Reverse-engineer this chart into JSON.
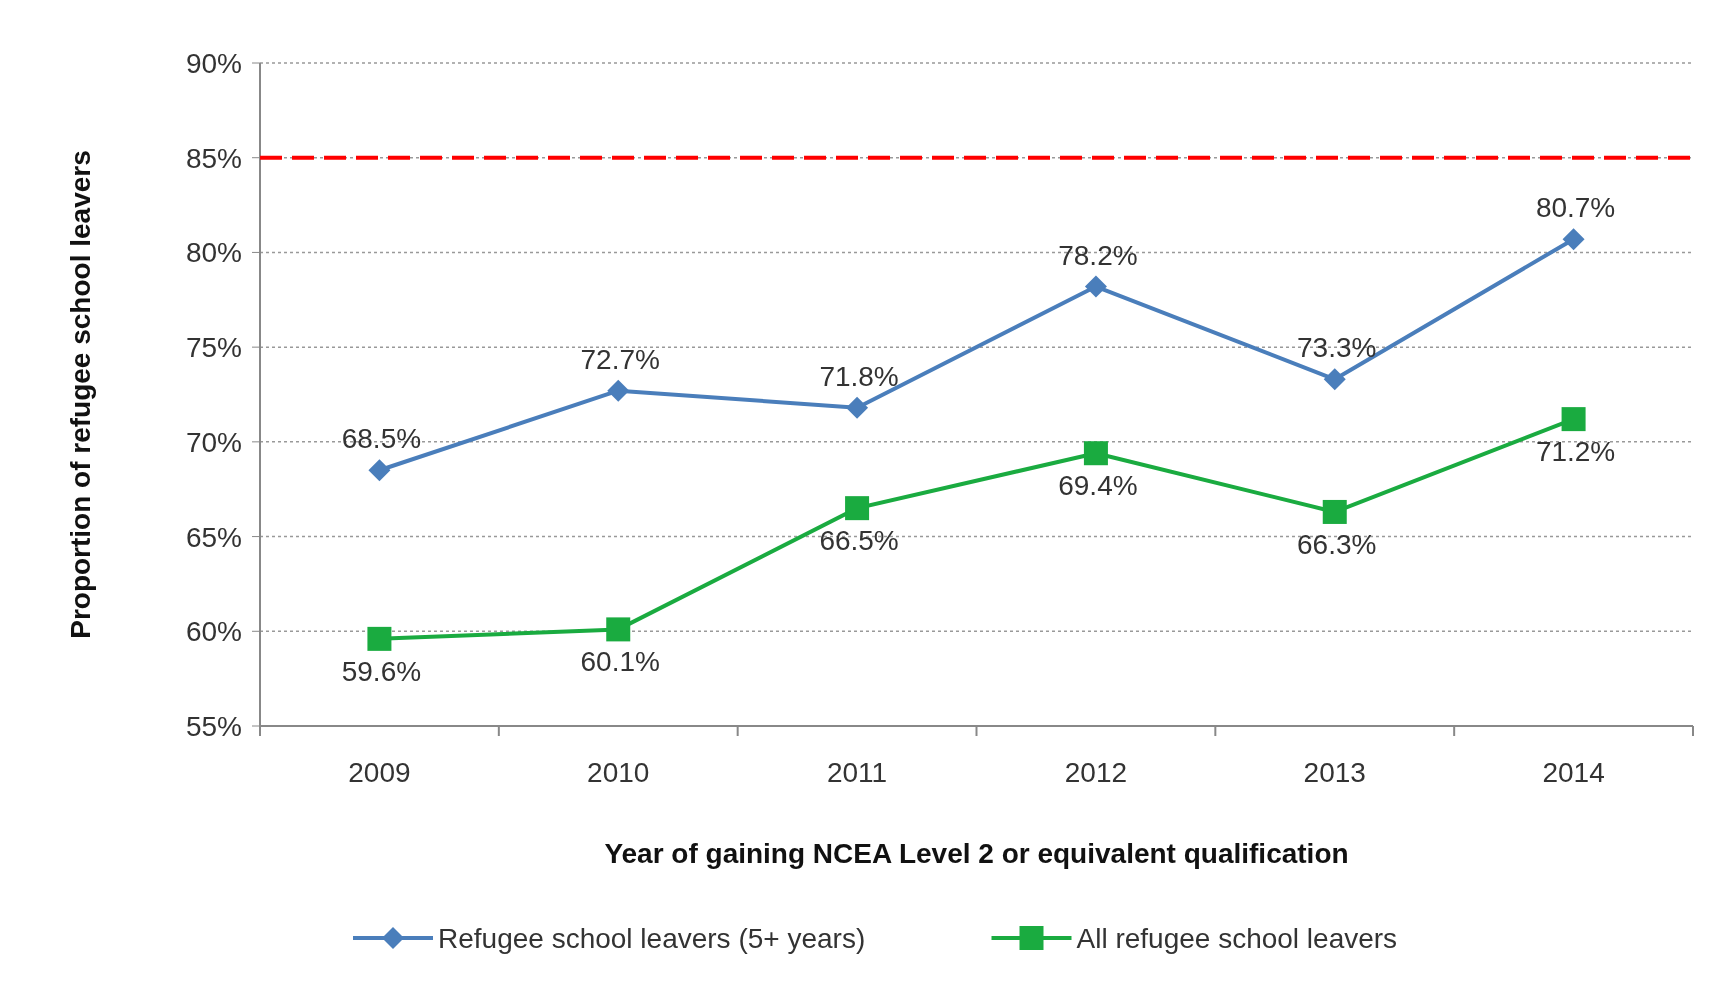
{
  "chart_data": {
    "type": "line",
    "xlabel": "Year of gaining NCEA Level 2 or equivalent qualification",
    "ylabel": "Proportion  of refugee school leavers",
    "categories": [
      "2009",
      "2010",
      "2011",
      "2012",
      "2013",
      "2014"
    ],
    "series": [
      {
        "name": "Refugee school leavers (5+ years)",
        "color": "#4a7ebb",
        "marker": "diamond",
        "values": [
          68.5,
          72.7,
          71.8,
          78.2,
          73.3,
          80.7
        ],
        "value_labels": [
          "68.5%",
          "72.7%",
          "71.8%",
          "78.2%",
          "73.3%",
          "80.7%"
        ]
      },
      {
        "name": "All refugee school leavers",
        "color": "#1aab40",
        "marker": "square",
        "values": [
          59.6,
          60.1,
          66.5,
          69.4,
          66.3,
          71.2
        ],
        "value_labels": [
          "59.6%",
          "60.1%",
          "66.5%",
          "69.4%",
          "66.3%",
          "71.2%"
        ]
      }
    ],
    "ylim": [
      55,
      90
    ],
    "yticks": [
      {
        "value": 55,
        "label": "55%"
      },
      {
        "value": 60,
        "label": "60%"
      },
      {
        "value": 65,
        "label": "65%"
      },
      {
        "value": 70,
        "label": "70%"
      },
      {
        "value": 75,
        "label": "75%"
      },
      {
        "value": 80,
        "label": "80%"
      },
      {
        "value": 85,
        "label": "85%"
      },
      {
        "value": 90,
        "label": "90%"
      }
    ],
    "ref_lines": [
      {
        "axis": "y",
        "value": 85,
        "color": "#ff0000",
        "line_style": "dashed"
      }
    ],
    "grid": "y",
    "legend": "bottom",
    "line_style": "solid"
  }
}
